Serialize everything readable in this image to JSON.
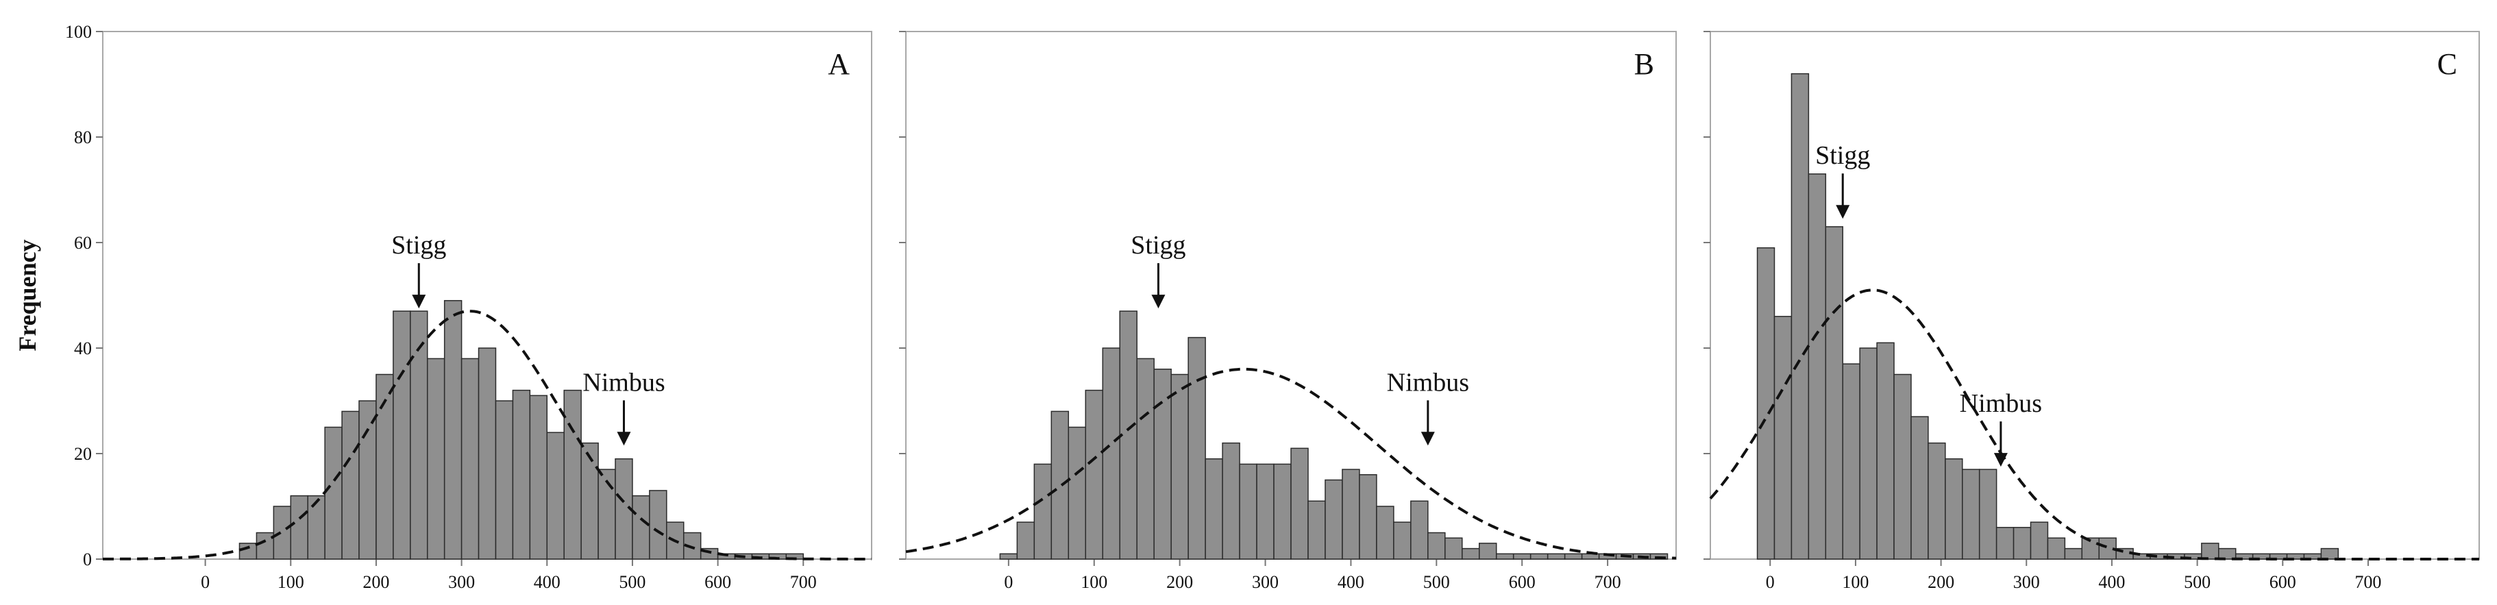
{
  "chart_data": [
    {
      "type": "bar",
      "panel_label": "A",
      "bin_width": 20,
      "xlim": [
        -120,
        780
      ],
      "ylim": [
        0,
        100
      ],
      "xticks": [
        0,
        100,
        200,
        300,
        400,
        500,
        600,
        700
      ],
      "yticks": [
        0,
        20,
        40,
        60,
        80,
        100
      ],
      "ylabel": "Frequency",
      "bins_start": [
        40,
        60,
        80,
        100,
        120,
        140,
        160,
        180,
        200,
        220,
        240,
        260,
        280,
        300,
        320,
        340,
        360,
        380,
        400,
        420,
        440,
        460,
        480,
        500,
        520,
        540,
        560,
        580,
        600,
        620,
        640,
        660,
        680
      ],
      "values": [
        3,
        5,
        10,
        12,
        12,
        25,
        28,
        30,
        35,
        47,
        47,
        38,
        49,
        38,
        40,
        30,
        32,
        31,
        24,
        32,
        22,
        17,
        19,
        12,
        13,
        7,
        5,
        2,
        1,
        1,
        1,
        1,
        1
      ],
      "fit": {
        "mean": 310,
        "sd": 105,
        "peak": 47
      },
      "annotations": [
        {
          "text": "Stigg",
          "x": 250,
          "y": 47
        },
        {
          "text": "Nimbus",
          "x": 490,
          "y": 21
        }
      ]
    },
    {
      "type": "bar",
      "panel_label": "B",
      "bin_width": 20,
      "xlim": [
        -120,
        780
      ],
      "ylim": [
        0,
        100
      ],
      "xticks": [
        0,
        100,
        200,
        300,
        400,
        500,
        600,
        700
      ],
      "yticks": [
        0,
        20,
        40,
        60,
        80,
        100
      ],
      "bins_start": [
        -10,
        10,
        30,
        50,
        70,
        90,
        110,
        130,
        150,
        170,
        190,
        210,
        230,
        250,
        270,
        290,
        310,
        330,
        350,
        370,
        390,
        410,
        430,
        450,
        470,
        490,
        510,
        530,
        550,
        570,
        590,
        610,
        630,
        650,
        670,
        690,
        710,
        730,
        750
      ],
      "values": [
        1,
        7,
        18,
        28,
        25,
        32,
        40,
        47,
        38,
        36,
        35,
        42,
        19,
        22,
        18,
        18,
        18,
        21,
        11,
        15,
        17,
        16,
        10,
        7,
        11,
        5,
        4,
        2,
        3,
        1,
        1,
        1,
        1,
        1,
        1,
        1,
        1,
        1,
        1
      ],
      "fit": {
        "mean": 275,
        "sd": 155,
        "peak": 36
      },
      "annotations": [
        {
          "text": "Stigg",
          "x": 175,
          "y": 47
        },
        {
          "text": "Nimbus",
          "x": 490,
          "y": 21
        }
      ]
    },
    {
      "type": "bar",
      "panel_label": "C",
      "bin_width": 20,
      "xlim": [
        -70,
        830
      ],
      "ylim": [
        0,
        100
      ],
      "xticks": [
        0,
        100,
        200,
        300,
        400,
        500,
        600,
        700
      ],
      "yticks": [
        0,
        20,
        40,
        60,
        80,
        100
      ],
      "bins_start": [
        -15,
        5,
        25,
        45,
        65,
        85,
        105,
        125,
        145,
        165,
        185,
        205,
        225,
        245,
        265,
        285,
        305,
        325,
        345,
        365,
        385,
        405,
        425,
        445,
        465,
        485,
        505,
        525,
        545,
        565,
        585,
        605,
        625,
        645
      ],
      "values": [
        59,
        46,
        92,
        73,
        63,
        37,
        40,
        41,
        35,
        27,
        22,
        19,
        17,
        17,
        6,
        6,
        7,
        4,
        2,
        4,
        4,
        2,
        1,
        1,
        1,
        1,
        3,
        2,
        1,
        1,
        1,
        1,
        1,
        2
      ],
      "fit": {
        "mean": 120,
        "sd": 110,
        "peak": 51
      },
      "annotations": [
        {
          "text": "Stigg",
          "x": 85,
          "y": 64
        },
        {
          "text": "Nimbus",
          "x": 270,
          "y": 17
        }
      ]
    }
  ]
}
